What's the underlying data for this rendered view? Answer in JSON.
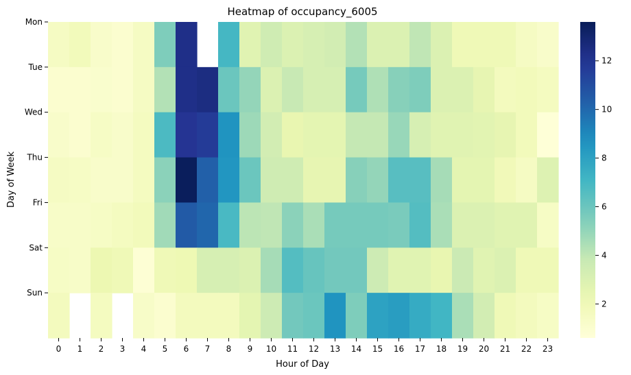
{
  "chart_data": {
    "type": "heatmap",
    "title": "Heatmap of occupancy_6005",
    "xlabel": "Hour of Day",
    "ylabel": "Day of Week",
    "x_categories": [
      "0",
      "1",
      "2",
      "3",
      "4",
      "5",
      "6",
      "7",
      "8",
      "9",
      "10",
      "11",
      "12",
      "13",
      "14",
      "15",
      "16",
      "17",
      "18",
      "19",
      "20",
      "21",
      "22",
      "23"
    ],
    "y_categories": [
      "Mon",
      "Tue",
      "Wed",
      "Thu",
      "Fri",
      "Sat",
      "Sun"
    ],
    "colormap": "YlGnBu",
    "vmin": 0.6,
    "vmax": 13.6,
    "colorbar_ticks": [
      2,
      4,
      6,
      8,
      10,
      12
    ],
    "values": [
      [
        1.5,
        1.8,
        1.2,
        1.0,
        1.5,
        5.5,
        12.3,
        null,
        7.0,
        2.8,
        3.5,
        3.0,
        3.2,
        3.4,
        4.3,
        3.0,
        3.0,
        4.0,
        3.0,
        2.0,
        2.0,
        2.0,
        1.5,
        1.2
      ],
      [
        1.0,
        1.0,
        1.1,
        1.0,
        1.5,
        4.3,
        12.3,
        12.5,
        6.0,
        5.0,
        3.0,
        3.8,
        3.2,
        3.2,
        5.7,
        4.4,
        5.3,
        5.5,
        3.0,
        3.0,
        2.5,
        1.7,
        1.8,
        1.6
      ],
      [
        1.2,
        1.0,
        1.4,
        1.2,
        1.6,
        6.8,
        12.0,
        11.7,
        8.6,
        4.8,
        3.4,
        2.4,
        2.6,
        2.6,
        3.9,
        3.9,
        4.9,
        3.2,
        2.8,
        2.8,
        2.7,
        2.5,
        1.8,
        0.7
      ],
      [
        1.5,
        1.4,
        1.2,
        1.2,
        1.6,
        5.2,
        13.5,
        10.3,
        8.5,
        6.0,
        3.5,
        3.5,
        2.5,
        2.5,
        5.3,
        5.0,
        6.5,
        6.5,
        4.6,
        2.6,
        2.6,
        1.9,
        1.5,
        2.9
      ],
      [
        1.3,
        1.3,
        1.4,
        1.6,
        1.8,
        4.7,
        10.5,
        10.1,
        6.9,
        4.1,
        4.0,
        5.2,
        4.5,
        5.7,
        5.7,
        5.7,
        5.6,
        6.6,
        4.5,
        3.0,
        3.0,
        2.8,
        2.8,
        1.4
      ],
      [
        1.4,
        1.3,
        2.2,
        2.0,
        0.8,
        2.0,
        2.1,
        3.2,
        3.2,
        3.0,
        4.6,
        6.6,
        6.1,
        5.8,
        5.8,
        3.6,
        2.8,
        2.8,
        2.4,
        3.7,
        2.8,
        3.0,
        2.0,
        2.0
      ],
      [
        1.7,
        null,
        1.6,
        null,
        1.3,
        1.0,
        1.7,
        1.7,
        1.7,
        2.6,
        3.6,
        5.8,
        6.0,
        8.6,
        5.5,
        8.0,
        8.2,
        7.6,
        7.1,
        4.5,
        3.4,
        2.0,
        1.7,
        1.4
      ]
    ]
  }
}
